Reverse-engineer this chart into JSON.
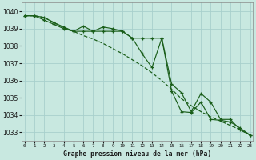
{
  "title": "Graphe pression niveau de la mer (hPa)",
  "bg_color": "#c8e8e0",
  "grid_color": "#a8d0cc",
  "line_color": "#1a5e1a",
  "ylim": [
    1032.5,
    1040.5
  ],
  "xlim": [
    -0.3,
    23.3
  ],
  "yticks": [
    1033,
    1034,
    1035,
    1036,
    1037,
    1038,
    1039,
    1040
  ],
  "x_labels": [
    "0",
    "1",
    "2",
    "3",
    "4",
    "5",
    "6",
    "7",
    "8",
    "9",
    "10",
    "11",
    "12",
    "13",
    "14",
    "15",
    "16",
    "17",
    "18",
    "19",
    "20",
    "21",
    "22",
    "23"
  ],
  "smooth_line": [
    1039.75,
    1039.75,
    1039.65,
    1039.35,
    1039.05,
    1038.85,
    1038.6,
    1038.4,
    1038.15,
    1037.85,
    1037.55,
    1037.2,
    1036.85,
    1036.45,
    1036.0,
    1035.5,
    1034.95,
    1034.55,
    1034.2,
    1033.9,
    1033.65,
    1033.4,
    1033.15,
    1032.85
  ],
  "line1": [
    1039.75,
    1039.75,
    1039.65,
    1039.35,
    1039.1,
    1038.85,
    1039.15,
    1038.85,
    1038.85,
    1038.85,
    1038.85,
    1038.45,
    1038.45,
    1038.45,
    1038.45,
    1035.4,
    1034.2,
    1034.15,
    1034.75,
    1033.75,
    1033.7,
    1033.6,
    1033.25,
    1032.85
  ],
  "line2": [
    1039.75,
    1039.75,
    1039.5,
    1039.25,
    1039.0,
    1038.85,
    1038.85,
    1038.85,
    1039.1,
    1039.0,
    1038.85,
    1038.45,
    1037.55,
    1036.75,
    1038.45,
    1035.8,
    1035.3,
    1034.2,
    1035.25,
    1034.75,
    1033.75,
    1033.75,
    1033.15,
    1032.85
  ]
}
